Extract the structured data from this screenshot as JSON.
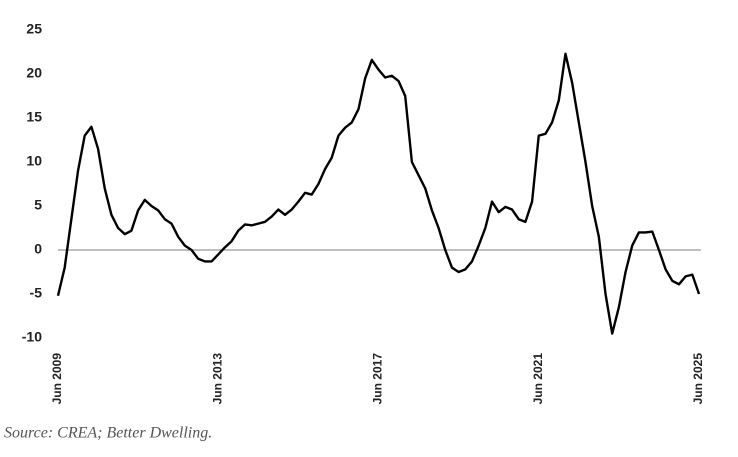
{
  "chart_data": {
    "type": "line",
    "source": "Source: CREA; Better Dwelling.",
    "x": [
      "2009-06",
      "2009-08",
      "2009-10",
      "2009-12",
      "2010-02",
      "2010-04",
      "2010-06",
      "2010-08",
      "2010-10",
      "2010-12",
      "2011-02",
      "2011-04",
      "2011-06",
      "2011-08",
      "2011-10",
      "2011-12",
      "2012-02",
      "2012-04",
      "2012-06",
      "2012-08",
      "2012-10",
      "2012-12",
      "2013-02",
      "2013-04",
      "2013-06",
      "2013-08",
      "2013-10",
      "2013-12",
      "2014-02",
      "2014-04",
      "2014-06",
      "2014-08",
      "2014-10",
      "2014-12",
      "2015-02",
      "2015-04",
      "2015-06",
      "2015-08",
      "2015-10",
      "2015-12",
      "2016-02",
      "2016-04",
      "2016-06",
      "2016-08",
      "2016-10",
      "2016-12",
      "2017-02",
      "2017-04",
      "2017-06",
      "2017-08",
      "2017-10",
      "2017-12",
      "2018-02",
      "2018-04",
      "2018-06",
      "2018-08",
      "2018-10",
      "2018-12",
      "2019-02",
      "2019-04",
      "2019-06",
      "2019-08",
      "2019-10",
      "2019-12",
      "2020-02",
      "2020-04",
      "2020-06",
      "2020-08",
      "2020-10",
      "2020-12",
      "2021-02",
      "2021-04",
      "2021-06",
      "2021-08",
      "2021-10",
      "2021-12",
      "2022-02",
      "2022-04",
      "2022-06",
      "2022-08",
      "2022-10",
      "2022-12",
      "2023-02",
      "2023-04",
      "2023-06",
      "2023-08",
      "2023-10",
      "2023-12",
      "2024-02",
      "2024-04",
      "2024-06",
      "2024-08",
      "2024-10",
      "2024-12",
      "2025-02",
      "2025-04",
      "2025-06"
    ],
    "series": [
      {
        "color": "#000000",
        "values": [
          -5.2,
          -2,
          3.5,
          9,
          13,
          14,
          11.5,
          7,
          4,
          2.5,
          1.8,
          2.2,
          4.5,
          5.7,
          5,
          4.5,
          3.5,
          3,
          1.5,
          0.5,
          0,
          -1,
          -1.3,
          -1.3,
          -0.5,
          0.3,
          1,
          2.2,
          2.9,
          2.8,
          3,
          3.2,
          3.8,
          4.6,
          4,
          4.6,
          5.5,
          6.5,
          6.3,
          7.5,
          9.2,
          10.5,
          13,
          13.9,
          14.5,
          16,
          19.5,
          21.6,
          20.5,
          19.6,
          19.8,
          19.2,
          17.5,
          10,
          8.5,
          7,
          4.5,
          2.5,
          0,
          -2,
          -2.5,
          -2.2,
          -1.3,
          0.5,
          2.5,
          5.5,
          4.3,
          4.9,
          4.6,
          3.5,
          3.2,
          5.5,
          13,
          13.2,
          14.5,
          17,
          22.3,
          19,
          14.5,
          10,
          5,
          1.5,
          -5,
          -9.5,
          -6.5,
          -2.5,
          0.5,
          2,
          2,
          2.1,
          0,
          -2.2,
          -3.5,
          -3.9,
          -3,
          -2.8,
          -5
        ]
      }
    ],
    "xlim": [
      "2009-06",
      "2025-06"
    ],
    "xticks": [
      {
        "value": "2009-06",
        "label": "Jun 2009"
      },
      {
        "value": "2013-06",
        "label": "Jun 2013"
      },
      {
        "value": "2017-06",
        "label": "Jun 2017"
      },
      {
        "value": "2021-06",
        "label": "Jun 2021"
      },
      {
        "value": "2025-06",
        "label": "Jun 2025"
      }
    ],
    "ylim": [
      -10,
      25
    ],
    "yticks": [
      -10,
      -5,
      0,
      5,
      10,
      15,
      20,
      25
    ]
  }
}
